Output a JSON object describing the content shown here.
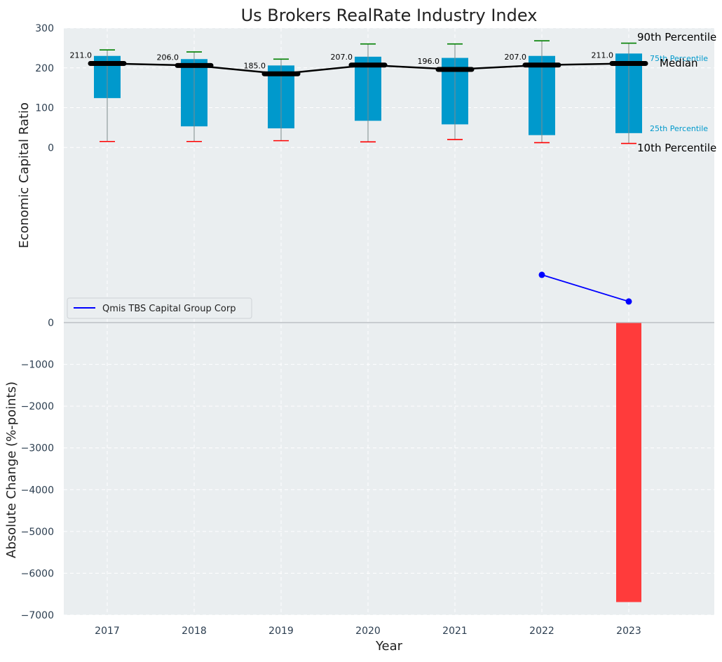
{
  "chart_data": [
    {
      "type": "box",
      "title": "Us Brokers RealRate Industry Index",
      "xlabel": "",
      "ylabel": "Economic Capital Ratio",
      "ylim": [
        -440,
        300
      ],
      "yticks": [
        0,
        100,
        200,
        300
      ],
      "categories": [
        "2017",
        "2018",
        "2019",
        "2020",
        "2021",
        "2022",
        "2023"
      ],
      "p10": [
        15,
        15,
        17,
        14,
        20,
        12,
        10
      ],
      "p25": [
        124,
        53,
        48,
        67,
        58,
        31,
        36
      ],
      "median": [
        211.0,
        206.0,
        185.0,
        207.0,
        196.0,
        207.0,
        211.0
      ],
      "p75": [
        230,
        222,
        206,
        228,
        225,
        230,
        236
      ],
      "p90": [
        245,
        240,
        222,
        260,
        260,
        268,
        262
      ],
      "median_label_values": [
        "211.0",
        "206.0",
        "185.0",
        "207.0",
        "196.0",
        "207.0",
        "211.0"
      ],
      "percentile_annotations": {
        "p90": "90th Percentile",
        "p75": "75th Percentile",
        "median": "Median",
        "p25": "25th Percentile",
        "p10": "10th Percentile"
      },
      "company_series": {
        "name": "Qmis TBS Capital Group Corp",
        "x": [
          "2022",
          "2023"
        ],
        "values": [
          -320,
          -387
        ]
      },
      "legend": {
        "label": "Qmis TBS Capital Group Corp",
        "placement": "lower-left"
      },
      "colors": {
        "box": "#0099cc",
        "median": "#000000",
        "p90_cap": "#008000",
        "p10_cap": "#ff0000",
        "company": "#0000ff",
        "annot_blue": "#0099cc"
      },
      "grid": true
    },
    {
      "type": "bar",
      "xlabel": "Year",
      "ylabel": "Absolute Change (%-points)",
      "ylim": [
        -7000,
        0
      ],
      "yticks": [
        0,
        -1000,
        -2000,
        -3000,
        -4000,
        -5000,
        -6000,
        -7000
      ],
      "ytick_labels": [
        "0",
        "−1000",
        "−2000",
        "−3000",
        "−4000",
        "−5000",
        "−6000",
        "−7000"
      ],
      "categories": [
        "2017",
        "2018",
        "2019",
        "2020",
        "2021",
        "2022",
        "2023"
      ],
      "values": [
        null,
        null,
        null,
        null,
        null,
        null,
        -6690
      ],
      "colors": {
        "bar": "#ff3b3b"
      },
      "grid": true
    }
  ]
}
